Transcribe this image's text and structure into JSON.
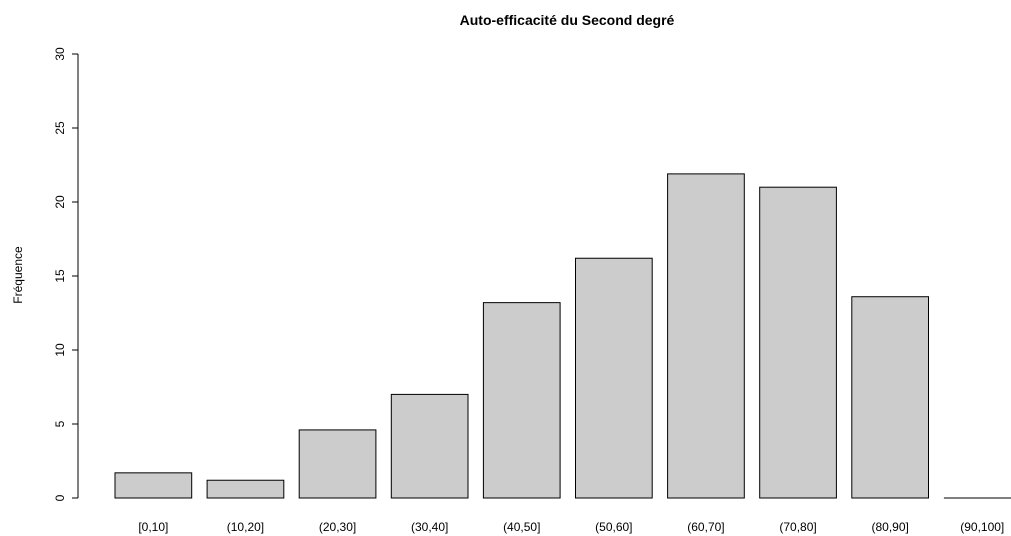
{
  "chart_data": {
    "type": "bar",
    "title": "Auto-efficacité du Second degré",
    "xlabel": "",
    "ylabel": "Fréquence",
    "ylim": [
      0,
      30
    ],
    "yticks": [
      0,
      5,
      10,
      15,
      20,
      25,
      30
    ],
    "categories": [
      "[0,10]",
      "(10,20]",
      "(20,30]",
      "(30,40]",
      "(40,50]",
      "(50,60]",
      "(60,70]",
      "(70,80]",
      "(80,90]",
      "(90,100]"
    ],
    "values": [
      1.7,
      1.2,
      4.6,
      7.0,
      13.2,
      16.2,
      21.9,
      21.0,
      13.6,
      0.0
    ],
    "bar_color": "#cccccc",
    "bar_border_color": "#000000",
    "grid": false
  }
}
